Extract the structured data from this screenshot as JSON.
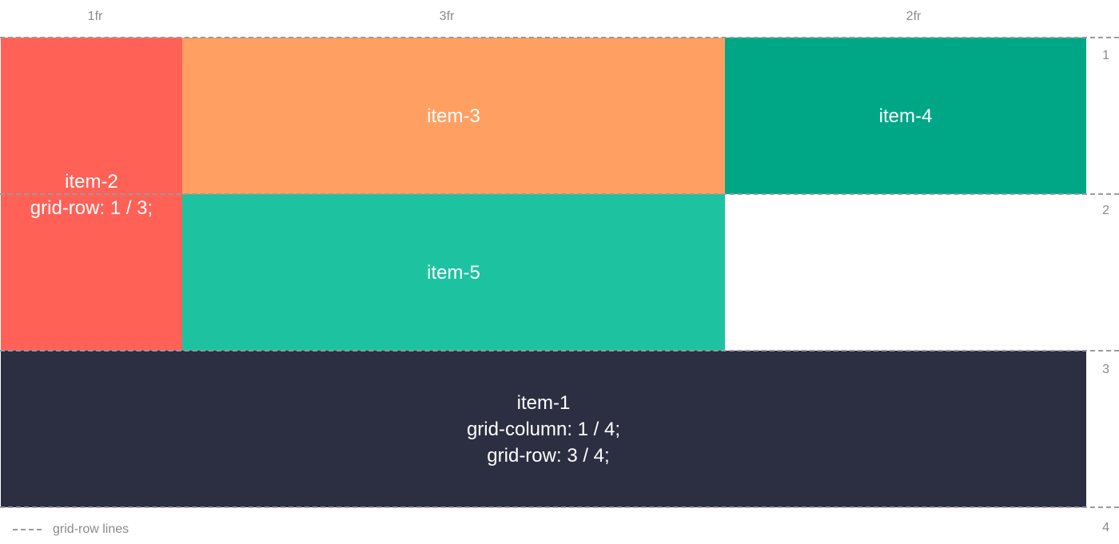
{
  "columns": [
    {
      "label": "1fr"
    },
    {
      "label": "3fr"
    },
    {
      "label": "2fr"
    }
  ],
  "rows": [
    {
      "label": "1"
    },
    {
      "label": "2"
    },
    {
      "label": "3"
    },
    {
      "label": "4"
    }
  ],
  "items": {
    "item1": {
      "name": "item-1",
      "line1": "grid-column: 1 / 4;",
      "line2": "grid-row: 3 / 4;",
      "color": "#2c2f42"
    },
    "item2": {
      "name": "item-2",
      "line1": "grid-row: 1 / 3;",
      "color": "#ff6157"
    },
    "item3": {
      "name": "item-3",
      "color": "#ffa062"
    },
    "item4": {
      "name": "item-4",
      "color": "#00a787"
    },
    "item5": {
      "name": "item-5",
      "color": "#1dc3a1"
    }
  },
  "legend": {
    "label": "grid-row lines"
  }
}
